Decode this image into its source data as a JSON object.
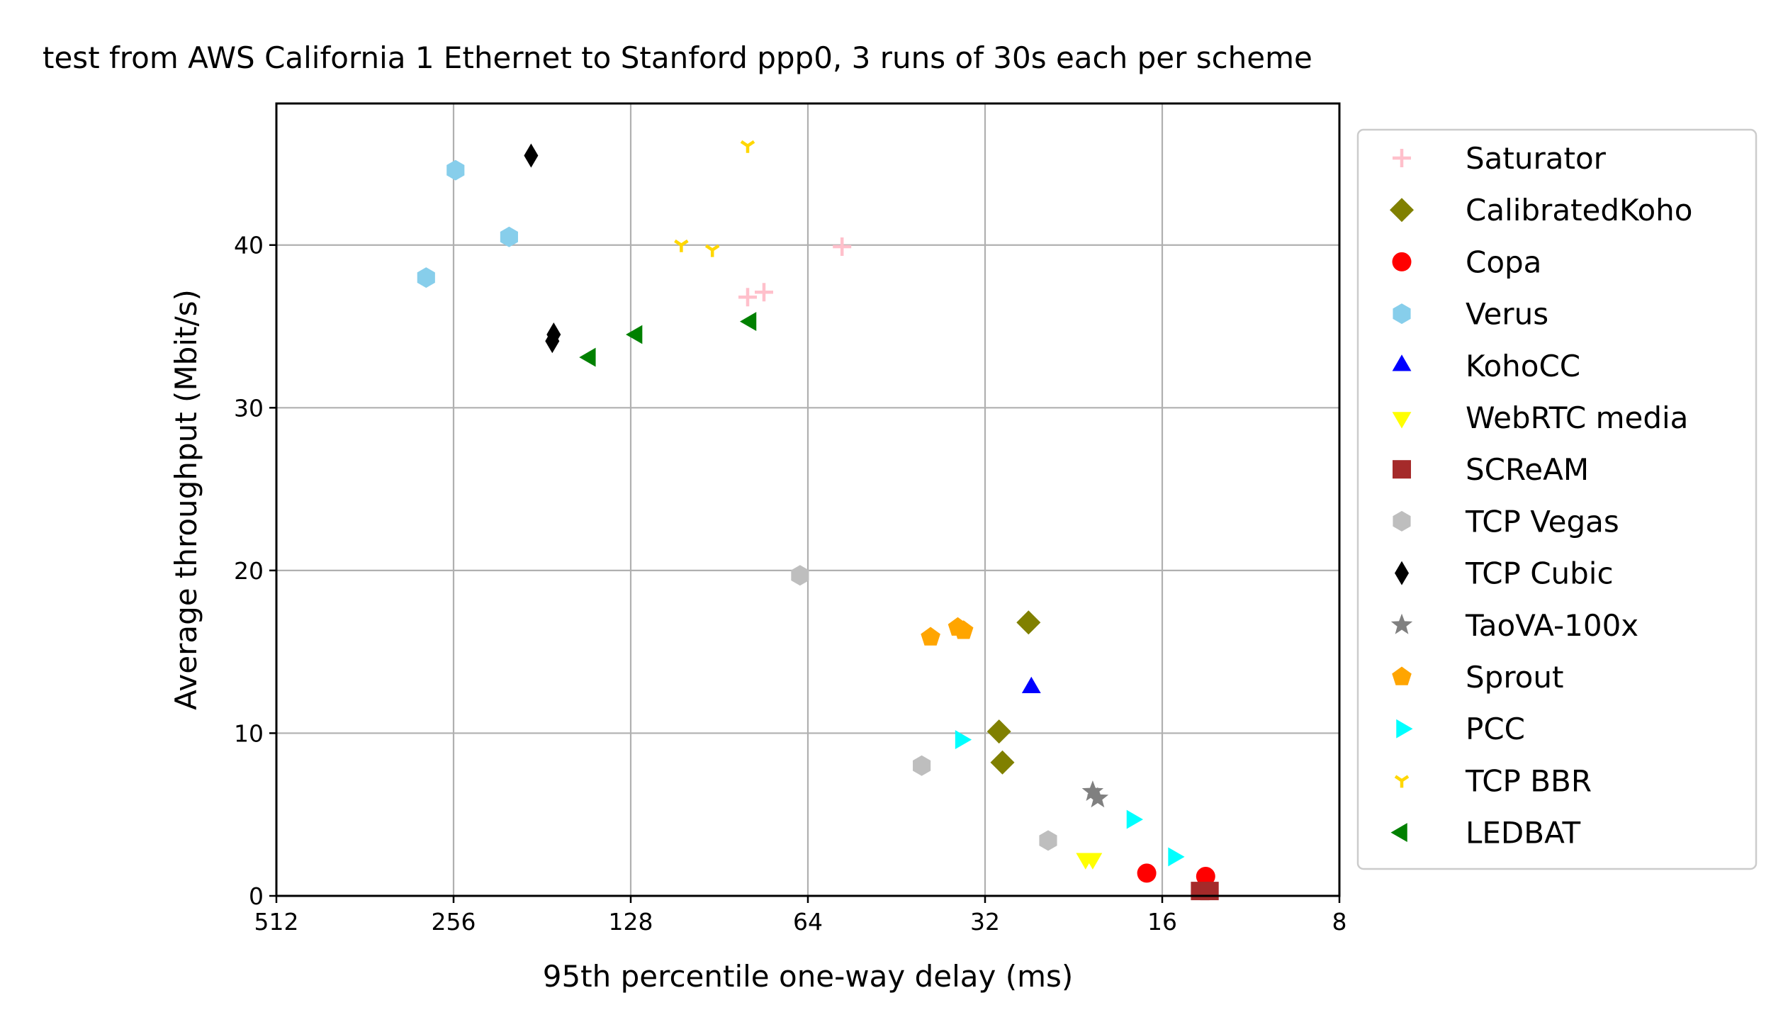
{
  "chart_data": {
    "type": "scatter",
    "title": "test from AWS California 1 Ethernet to Stanford ppp0, 3 runs of 30s each per scheme",
    "xlabel": "95th percentile one-way delay (ms)",
    "ylabel": "Average throughput (Mbit/s)",
    "xscale": "log2",
    "xaxis_inverted": true,
    "xlim": [
      512,
      8
    ],
    "ylim": [
      0,
      48.7
    ],
    "xticks": [
      512,
      256,
      128,
      64,
      32,
      16,
      8
    ],
    "xtick_labels": [
      "512",
      "256",
      "128",
      "64",
      "32",
      "16",
      "8"
    ],
    "yticks": [
      0,
      10,
      20,
      30,
      40
    ],
    "ytick_labels": [
      "0",
      "10",
      "20",
      "30",
      "40"
    ],
    "grid": true,
    "legend_position": "outside-right",
    "series": [
      {
        "name": "Saturator",
        "marker": "plus",
        "color": "#ffc0cb",
        "points": [
          [
            81,
            36.8
          ],
          [
            76,
            37.1
          ],
          [
            56,
            39.9
          ]
        ]
      },
      {
        "name": "CalibratedKoho",
        "marker": "diamond",
        "color": "#808000",
        "points": [
          [
            27,
            16.8
          ],
          [
            30.3,
            10.1
          ],
          [
            29.9,
            8.2
          ]
        ]
      },
      {
        "name": "Copa",
        "marker": "circle",
        "color": "#ff0000",
        "points": [
          [
            17,
            1.4
          ],
          [
            13.5,
            1.2
          ]
        ]
      },
      {
        "name": "Verus",
        "marker": "hexagon",
        "color": "#87ceeb",
        "points": [
          [
            254,
            44.6
          ],
          [
            206,
            40.5
          ],
          [
            285,
            38.0
          ]
        ]
      },
      {
        "name": "KohoCC",
        "marker": "triangle-up",
        "color": "#0000ff",
        "points": [
          [
            26.7,
            12.8
          ]
        ]
      },
      {
        "name": "WebRTC media",
        "marker": "triangle-down",
        "color": "#ffff00",
        "points": [
          [
            21.6,
            2.3
          ],
          [
            21.0,
            2.3
          ]
        ]
      },
      {
        "name": "SCReAM",
        "marker": "square",
        "color": "#a52a2a",
        "points": [
          [
            13.8,
            0.3
          ],
          [
            13.3,
            0.3
          ]
        ]
      },
      {
        "name": "TCP Vegas",
        "marker": "hexagon",
        "color": "#bebebe",
        "points": [
          [
            66,
            19.7
          ],
          [
            41,
            8.0
          ],
          [
            25,
            3.4
          ]
        ]
      },
      {
        "name": "TCP Cubic",
        "marker": "thin-diamond",
        "color": "#000000",
        "points": [
          [
            189,
            45.5
          ],
          [
            173,
            34.5
          ],
          [
            174,
            34.1
          ]
        ]
      },
      {
        "name": "TaoVA-100x",
        "marker": "star",
        "color": "#808080",
        "points": [
          [
            21.0,
            6.4
          ],
          [
            20.6,
            6.0
          ]
        ]
      },
      {
        "name": "Sprout",
        "marker": "pentagon",
        "color": "#ffa500",
        "points": [
          [
            39.6,
            15.9
          ],
          [
            35.6,
            16.5
          ],
          [
            34.8,
            16.3
          ]
        ]
      },
      {
        "name": "PCC",
        "marker": "triangle-right",
        "color": "#00ffff",
        "points": [
          [
            35.2,
            9.6
          ],
          [
            18.0,
            4.7
          ],
          [
            15.3,
            2.4
          ]
        ]
      },
      {
        "name": "TCP BBR",
        "marker": "tri-down",
        "color": "#ffd700",
        "points": [
          [
            81,
            46.1
          ],
          [
            105,
            40.0
          ],
          [
            93,
            39.7
          ]
        ]
      },
      {
        "name": "LEDBAT",
        "marker": "triangle-left",
        "color": "#008000",
        "points": [
          [
            125,
            34.5
          ],
          [
            150,
            33.1
          ],
          [
            80,
            35.3
          ]
        ]
      }
    ]
  }
}
